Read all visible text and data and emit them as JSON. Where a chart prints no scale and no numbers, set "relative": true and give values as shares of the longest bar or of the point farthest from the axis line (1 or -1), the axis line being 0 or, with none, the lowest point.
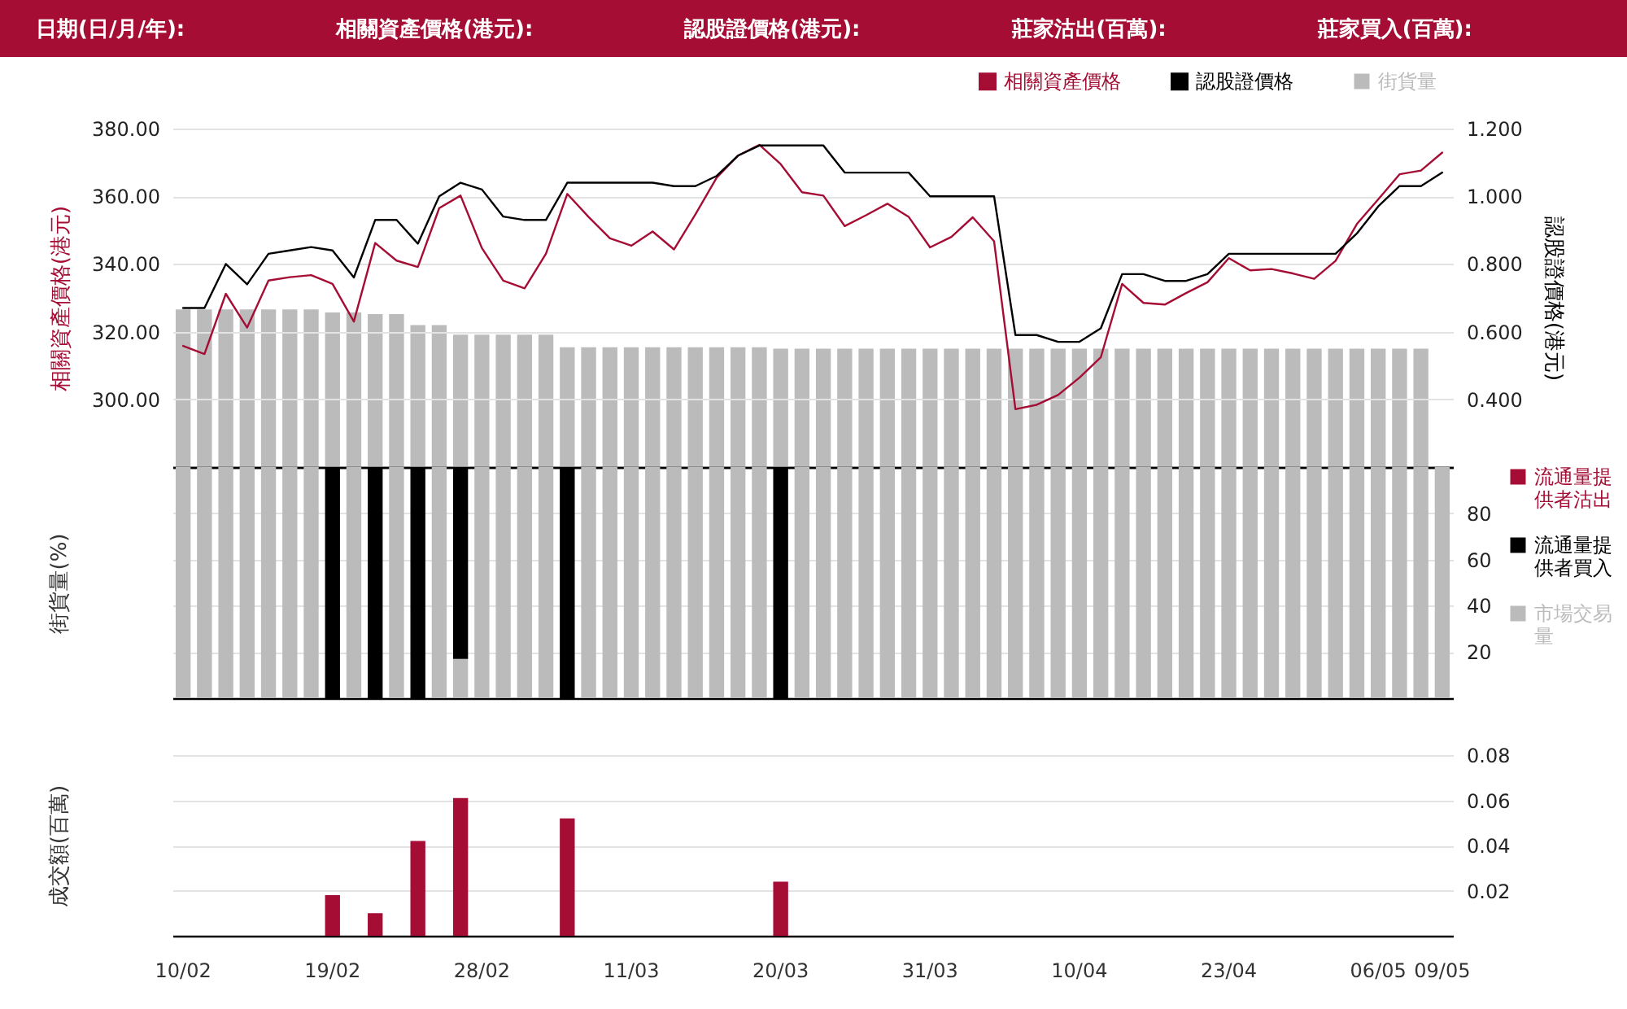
{
  "chart_data": [
    {
      "type": "line",
      "annotations": [
        "日期(日/月/年):",
        "相關資產價格(港元):",
        "認股證價格(港元):",
        "莊家沽出(百萬):",
        "莊家買入(百萬):"
      ],
      "categories": [
        null,
        null,
        null,
        null,
        null,
        null,
        null,
        null,
        null,
        null,
        null,
        null,
        null,
        null,
        null,
        null,
        null,
        null,
        null,
        null,
        null,
        null,
        null,
        null,
        null,
        null,
        null,
        null,
        null,
        null,
        null,
        null,
        null,
        null,
        null,
        null,
        null,
        null,
        null,
        null,
        null,
        null,
        null,
        null,
        null,
        null,
        null,
        null,
        null,
        null,
        null,
        null,
        null,
        null,
        null,
        null,
        null,
        null,
        null,
        null
      ],
      "ylabel": "相關資產價格(港元)",
      "y2label": "認股證價格(港元)",
      "ylim": [
        280,
        380
      ],
      "yticks": [
        {
          "value": 300,
          "label": "300.00"
        },
        {
          "value": 320,
          "label": "320.00"
        },
        {
          "value": 340,
          "label": "340.00"
        },
        {
          "value": 360,
          "label": "360.00"
        },
        {
          "value": 380,
          "label": "380.00"
        }
      ],
      "y2lim": [
        0.2,
        1.2
      ],
      "y2ticks": [
        {
          "value": 0.4,
          "label": "0.400"
        },
        {
          "value": 0.6,
          "label": "0.600"
        },
        {
          "value": 0.8,
          "label": "0.800"
        },
        {
          "value": 1.0,
          "label": "1.000"
        },
        {
          "value": 1.2,
          "label": "1.200"
        }
      ],
      "grid": "y",
      "legend": "top right",
      "tick_labels": "y",
      "series": [
        {
          "name": "相關資產價格",
          "color": "#a50d34",
          "values": [
            315.8,
            313.4,
            331.2,
            321.2,
            335.1,
            336.1,
            336.7,
            334.1,
            323.0,
            346.2,
            341.0,
            339.1,
            356.5,
            360.2,
            344.7,
            335.1,
            332.8,
            343.0,
            360.7,
            353.9,
            347.6,
            345.4,
            349.6,
            344.3,
            354.6,
            365.5,
            372.0,
            375.2,
            369.5,
            361.2,
            360.2,
            351.2,
            354.4,
            357.8,
            353.9,
            344.9,
            348.0,
            353.8,
            346.7,
            297.1,
            298.4,
            301.3,
            306.4,
            312.4,
            334.1,
            328.5,
            328.0,
            331.4,
            334.6,
            341.7,
            338.1,
            338.5,
            337.2,
            335.6,
            340.9,
            351.8,
            359.1,
            366.5,
            367.6,
            372.9
          ]
        },
        {
          "name": "認股證價格",
          "axis": "y2",
          "color": "#000000",
          "values": [
            0.67,
            0.67,
            0.8,
            0.74,
            0.83,
            0.84,
            0.85,
            0.84,
            0.76,
            0.93,
            0.93,
            0.86,
            1.0,
            1.04,
            1.02,
            0.94,
            0.93,
            0.93,
            1.04,
            1.04,
            1.04,
            1.04,
            1.04,
            1.03,
            1.03,
            1.06,
            1.12,
            1.15,
            1.15,
            1.15,
            1.15,
            1.07,
            1.07,
            1.07,
            1.07,
            1.0,
            1.0,
            1.0,
            1.0,
            0.59,
            0.59,
            0.57,
            0.57,
            0.61,
            0.77,
            0.77,
            0.75,
            0.75,
            0.77,
            0.83,
            0.83,
            0.83,
            0.83,
            0.83,
            0.83,
            0.89,
            0.97,
            1.03,
            1.03,
            1.07
          ]
        }
      ]
    },
    {
      "type": "bar",
      "relative": true,
      "legend": "top right",
      "tick_labels": false,
      "categories": [
        null,
        null,
        null,
        null,
        null,
        null,
        null,
        null,
        null,
        null,
        null,
        null,
        null,
        null,
        null,
        null,
        null,
        null,
        null,
        null,
        null,
        null,
        null,
        null,
        null,
        null,
        null,
        null,
        null,
        null,
        null,
        null,
        null,
        null,
        null,
        null,
        null,
        null,
        null,
        null,
        null,
        null,
        null,
        null,
        null,
        null,
        null,
        null,
        null,
        null,
        null,
        null,
        null,
        null,
        null,
        null,
        null,
        null,
        null,
        null
      ],
      "series": [
        {
          "name": "街貨量",
          "color": "#bbbbbb",
          "values": [
            1,
            1,
            1,
            1,
            1,
            1,
            1,
            0.98,
            0.98,
            0.97,
            0.97,
            0.9,
            0.9,
            0.84,
            0.84,
            0.84,
            0.84,
            0.84,
            0.76,
            0.76,
            0.76,
            0.76,
            0.76,
            0.76,
            0.76,
            0.76,
            0.76,
            0.76,
            0.75,
            0.75,
            0.75,
            0.75,
            0.75,
            0.75,
            0.75,
            0.75,
            0.75,
            0.75,
            0.75,
            0.75,
            0.75,
            0.75,
            0.75,
            0.75,
            0.75,
            0.75,
            0.75,
            0.75,
            0.75,
            0.75,
            0.75,
            0.75,
            0.75,
            0.75,
            0.75,
            0.75,
            0.75,
            0.75,
            0.75,
            null
          ]
        }
      ]
    },
    {
      "type": "bar",
      "stacked": true,
      "categories": [
        null,
        null,
        null,
        null,
        null,
        null,
        null,
        null,
        null,
        null,
        null,
        null,
        null,
        null,
        null,
        null,
        null,
        null,
        null,
        null,
        null,
        null,
        null,
        null,
        null,
        null,
        null,
        null,
        null,
        null,
        null,
        null,
        null,
        null,
        null,
        null,
        null,
        null,
        null,
        null,
        null,
        null,
        null,
        null,
        null,
        null,
        null,
        null,
        null,
        null,
        null,
        null,
        null,
        null,
        null,
        null,
        null,
        null,
        null,
        null
      ],
      "ylabel": "街貨量(%)",
      "ylim": [
        0,
        100
      ],
      "yticks": [
        20,
        40,
        60,
        80
      ],
      "grid": "y",
      "legend": "right",
      "tick_labels": "y",
      "series": [
        {
          "name": "市場交易量",
          "color": "#bbbbbb",
          "values": [
            100,
            100,
            100,
            100,
            100,
            100,
            100,
            0,
            100,
            0,
            100,
            0,
            100,
            17,
            100,
            100,
            100,
            100,
            0,
            100,
            100,
            100,
            100,
            100,
            100,
            100,
            100,
            100,
            0,
            100,
            100,
            100,
            100,
            100,
            100,
            100,
            100,
            100,
            100,
            100,
            100,
            100,
            100,
            100,
            100,
            100,
            100,
            100,
            100,
            100,
            100,
            100,
            100,
            100,
            100,
            100,
            100,
            100,
            100,
            100
          ]
        },
        {
          "name": "流通量提供者買入",
          "color": "#000000",
          "values": [
            0,
            0,
            0,
            0,
            0,
            0,
            0,
            100,
            0,
            100,
            0,
            100,
            0,
            83,
            0,
            0,
            0,
            0,
            100,
            0,
            0,
            0,
            0,
            0,
            0,
            0,
            0,
            0,
            100,
            0,
            0,
            0,
            0,
            0,
            0,
            0,
            0,
            0,
            0,
            0,
            0,
            0,
            0,
            0,
            0,
            0,
            0,
            0,
            0,
            0,
            0,
            0,
            0,
            0,
            0,
            0,
            0,
            0,
            0,
            0
          ]
        },
        {
          "name": "流通量提供者沽出",
          "color": "#a50d34",
          "values": [
            0,
            0,
            0,
            0,
            0,
            0,
            0,
            0,
            0,
            0,
            0,
            0,
            0,
            0,
            0,
            0,
            0,
            0,
            0,
            0,
            0,
            0,
            0,
            0,
            0,
            0,
            0,
            0,
            0,
            0,
            0,
            0,
            0,
            0,
            0,
            0,
            0,
            0,
            0,
            0,
            0,
            0,
            0,
            0,
            0,
            0,
            0,
            0,
            0,
            0,
            0,
            0,
            0,
            0,
            0,
            0,
            0,
            0,
            0,
            0
          ]
        }
      ]
    },
    {
      "type": "bar",
      "categories": [
        "10/02",
        null,
        null,
        null,
        null,
        null,
        null,
        "19/02",
        null,
        null,
        null,
        null,
        null,
        null,
        "28/02",
        null,
        null,
        null,
        null,
        null,
        null,
        "11/03",
        null,
        null,
        null,
        null,
        null,
        null,
        "20/03",
        null,
        null,
        null,
        null,
        null,
        null,
        "31/03",
        null,
        null,
        null,
        null,
        null,
        null,
        "10/04",
        null,
        null,
        null,
        null,
        null,
        null,
        "23/04",
        null,
        null,
        null,
        null,
        null,
        null,
        "06/05",
        null,
        null,
        "09/05"
      ],
      "ylabel": "成交額(百萬)",
      "ylim": [
        0,
        0.08
      ],
      "yticks": [
        0.02,
        0.04,
        0.06,
        0.08
      ],
      "grid": "y",
      "color": "#a50d34",
      "values": [
        0,
        0,
        0,
        0,
        0,
        0,
        0,
        0.018,
        0,
        0.01,
        0,
        0.042,
        0,
        0.061,
        0,
        0,
        0,
        0,
        0.052,
        0,
        0,
        0,
        0,
        0,
        0,
        0,
        0,
        0,
        0.024,
        0,
        0,
        0,
        0,
        0,
        0,
        0,
        0,
        0,
        0,
        0,
        0,
        0,
        0,
        0,
        0,
        0,
        0,
        0,
        0,
        0,
        0,
        0,
        0,
        0,
        0,
        0,
        0,
        0,
        0,
        0
      ]
    }
  ]
}
